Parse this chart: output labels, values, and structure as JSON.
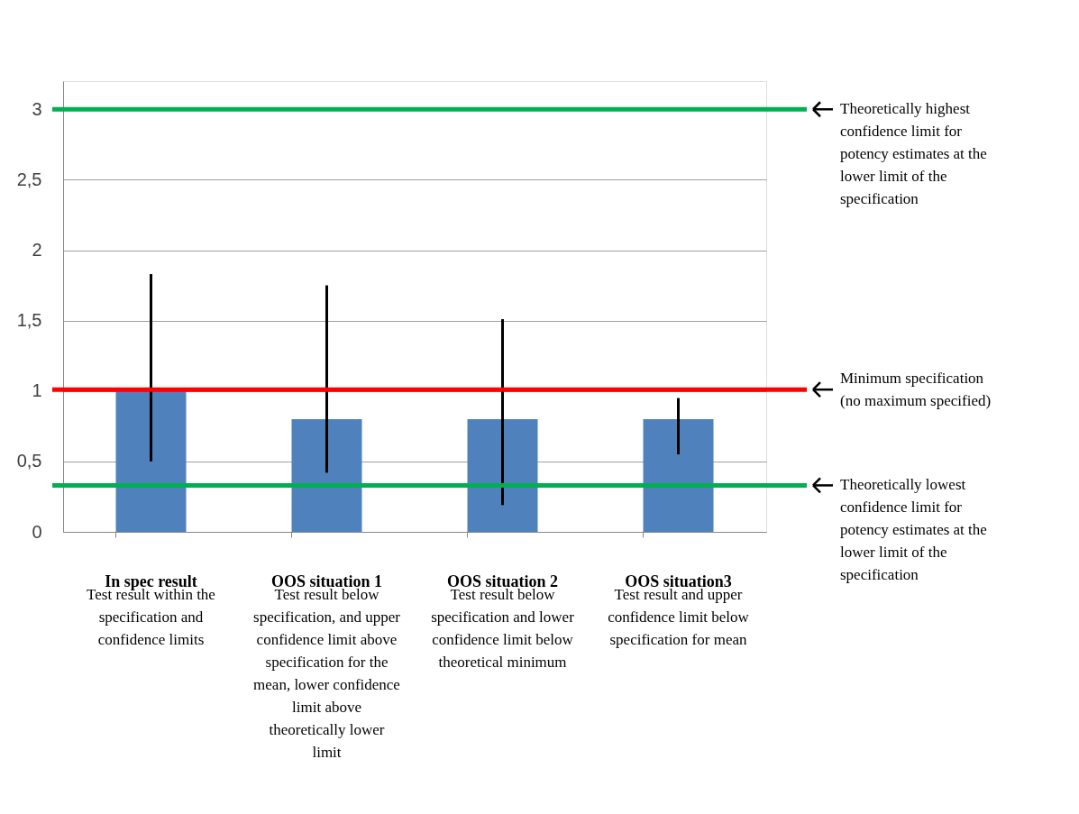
{
  "chart_data": {
    "type": "bar",
    "categories": [
      "In spec result",
      "OOS situation 1",
      "OOS situation 2",
      "OOS situation3"
    ],
    "values": [
      1,
      0.8,
      0.8,
      0.8
    ],
    "color": "#4f81bd",
    "errors": [
      [
        0.5,
        1.83
      ],
      [
        0.42,
        1.75
      ],
      [
        0.19,
        1.51
      ],
      [
        0.55,
        0.95
      ]
    ],
    "ylim": [
      0,
      3.2
    ],
    "yticks": [
      0,
      {
        "value": 0.5,
        "label": "0,5"
      },
      1,
      {
        "value": 1.5,
        "label": "1,5"
      },
      2,
      {
        "value": 2.5,
        "label": "2,5"
      },
      3
    ],
    "grid": "y",
    "ref_lines": [
      {
        "axis": "y",
        "value": 3,
        "label": "Theoretically highest confidence limit for potency estimates at the lower limit of the specification",
        "color": "#00b050"
      },
      {
        "axis": "y",
        "value": 1.01,
        "label": "Minimum specification (no maximum specified)",
        "color": "#ff0000"
      },
      {
        "axis": "y",
        "value": 0.33,
        "label": "Theoretically lowest confidence limit for potency estimates at the lower limit of the specification",
        "color": "#00b050"
      }
    ],
    "annotations": [
      "Test result within the specification and confidence limits",
      "Test result below specification, and upper confidence limit above specification for the mean, lower confidence limit above theoretically lower limit",
      "Test result below specification and lower confidence limit below theoretical minimum",
      "Test result and upper confidence limit below specification for mean"
    ]
  }
}
